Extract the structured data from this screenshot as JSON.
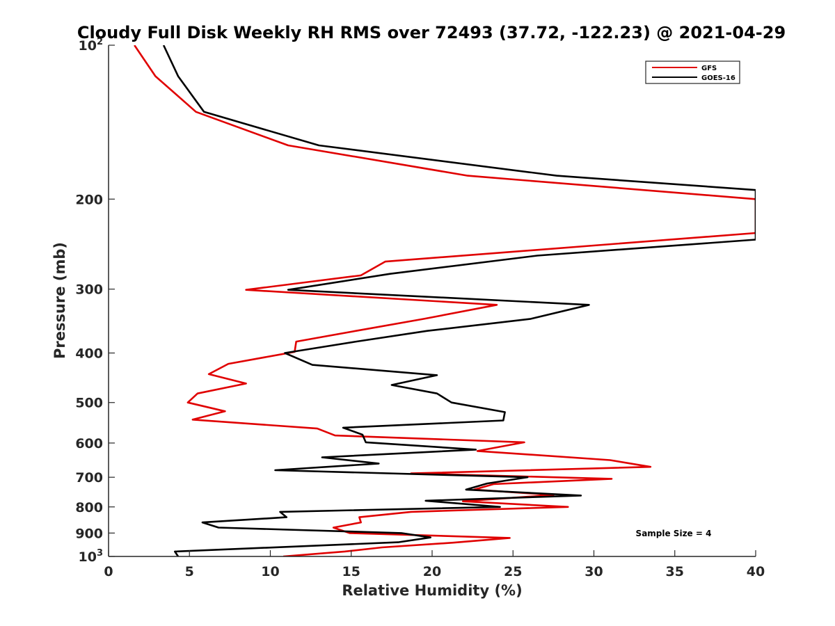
{
  "chart_data": {
    "type": "line",
    "title": "Cloudy Full Disk Weekly RH RMS over 72493 (37.72, -122.23) @ 2021-04-29",
    "xlabel": "Relative Humidity (%)",
    "ylabel": "Pressure (mb)",
    "xlim": [
      0,
      40
    ],
    "ylim": [
      100,
      1000
    ],
    "y_scale": "log",
    "y_direction": "reversed",
    "grid": false,
    "legend_position": "top-right",
    "x_ticks": [
      "0",
      "5",
      "10",
      "15",
      "20",
      "25",
      "30",
      "35",
      "40"
    ],
    "y_ticks": [
      {
        "value": 100,
        "label": "10",
        "sup": "2"
      },
      {
        "value": 200,
        "label": "200",
        "sup": ""
      },
      {
        "value": 300,
        "label": "300",
        "sup": ""
      },
      {
        "value": 400,
        "label": "400",
        "sup": ""
      },
      {
        "value": 500,
        "label": "500",
        "sup": ""
      },
      {
        "value": 600,
        "label": "600",
        "sup": ""
      },
      {
        "value": 700,
        "label": "700",
        "sup": ""
      },
      {
        "value": 800,
        "label": "800",
        "sup": ""
      },
      {
        "value": 900,
        "label": "900",
        "sup": ""
      },
      {
        "value": 1000,
        "label": "10",
        "sup": "3"
      }
    ],
    "annotation": "Sample Size = 4",
    "series": [
      {
        "name": "GFS",
        "color": "#e00000",
        "points": [
          [
            1.6,
            100
          ],
          [
            2.9,
            115
          ],
          [
            5.4,
            135
          ],
          [
            11.1,
            157
          ],
          [
            22.2,
            180
          ],
          [
            40,
            200
          ],
          [
            40,
            233
          ],
          [
            17.1,
            265
          ],
          [
            15.6,
            282
          ],
          [
            8.5,
            301
          ],
          [
            24.0,
            322
          ],
          [
            19.5,
            343
          ],
          [
            15.3,
            362
          ],
          [
            11.6,
            380
          ],
          [
            11.5,
            398
          ],
          [
            7.4,
            420
          ],
          [
            6.2,
            440
          ],
          [
            8.5,
            459
          ],
          [
            5.5,
            480
          ],
          [
            4.9,
            500
          ],
          [
            7.2,
            520
          ],
          [
            5.2,
            540
          ],
          [
            12.9,
            562
          ],
          [
            14.0,
            580
          ],
          [
            25.7,
            598
          ],
          [
            22.8,
            622
          ],
          [
            31.0,
            648
          ],
          [
            33.5,
            668
          ],
          [
            18.7,
            688
          ],
          [
            31.1,
            705
          ],
          [
            23.8,
            722
          ],
          [
            22.6,
            740
          ],
          [
            27.5,
            758
          ],
          [
            21.9,
            780
          ],
          [
            28.4,
            800
          ],
          [
            18.7,
            818
          ],
          [
            15.5,
            838
          ],
          [
            15.6,
            858
          ],
          [
            13.9,
            878
          ],
          [
            14.9,
            900
          ],
          [
            24.8,
            920
          ],
          [
            21.3,
            940
          ],
          [
            16.9,
            960
          ],
          [
            14.6,
            978
          ],
          [
            10.8,
            1000
          ]
        ]
      },
      {
        "name": "GOES-16",
        "color": "#000000",
        "points": [
          [
            3.4,
            100
          ],
          [
            4.3,
            115
          ],
          [
            5.9,
            135
          ],
          [
            13.0,
            157
          ],
          [
            27.7,
            180
          ],
          [
            40,
            192
          ],
          [
            40,
            240
          ],
          [
            26.5,
            258
          ],
          [
            17.4,
            280
          ],
          [
            11.1,
            301
          ],
          [
            29.7,
            322
          ],
          [
            26.1,
            343
          ],
          [
            19.7,
            362
          ],
          [
            15.3,
            380
          ],
          [
            10.9,
            400
          ],
          [
            12.6,
            422
          ],
          [
            20.3,
            442
          ],
          [
            17.5,
            462
          ],
          [
            20.3,
            480
          ],
          [
            21.2,
            500
          ],
          [
            24.5,
            522
          ],
          [
            24.4,
            542
          ],
          [
            14.5,
            560
          ],
          [
            15.7,
            578
          ],
          [
            15.9,
            598
          ],
          [
            22.7,
            618
          ],
          [
            13.2,
            640
          ],
          [
            16.7,
            658
          ],
          [
            10.3,
            678
          ],
          [
            25.9,
            700
          ],
          [
            23.4,
            720
          ],
          [
            22.1,
            740
          ],
          [
            29.2,
            760
          ],
          [
            19.6,
            778
          ],
          [
            24.2,
            800
          ],
          [
            10.6,
            818
          ],
          [
            11.0,
            838
          ],
          [
            5.8,
            858
          ],
          [
            6.8,
            878
          ],
          [
            18.1,
            900
          ],
          [
            19.9,
            918
          ],
          [
            17.9,
            938
          ],
          [
            4.1,
            978
          ],
          [
            4.3,
            1000
          ]
        ]
      }
    ]
  }
}
